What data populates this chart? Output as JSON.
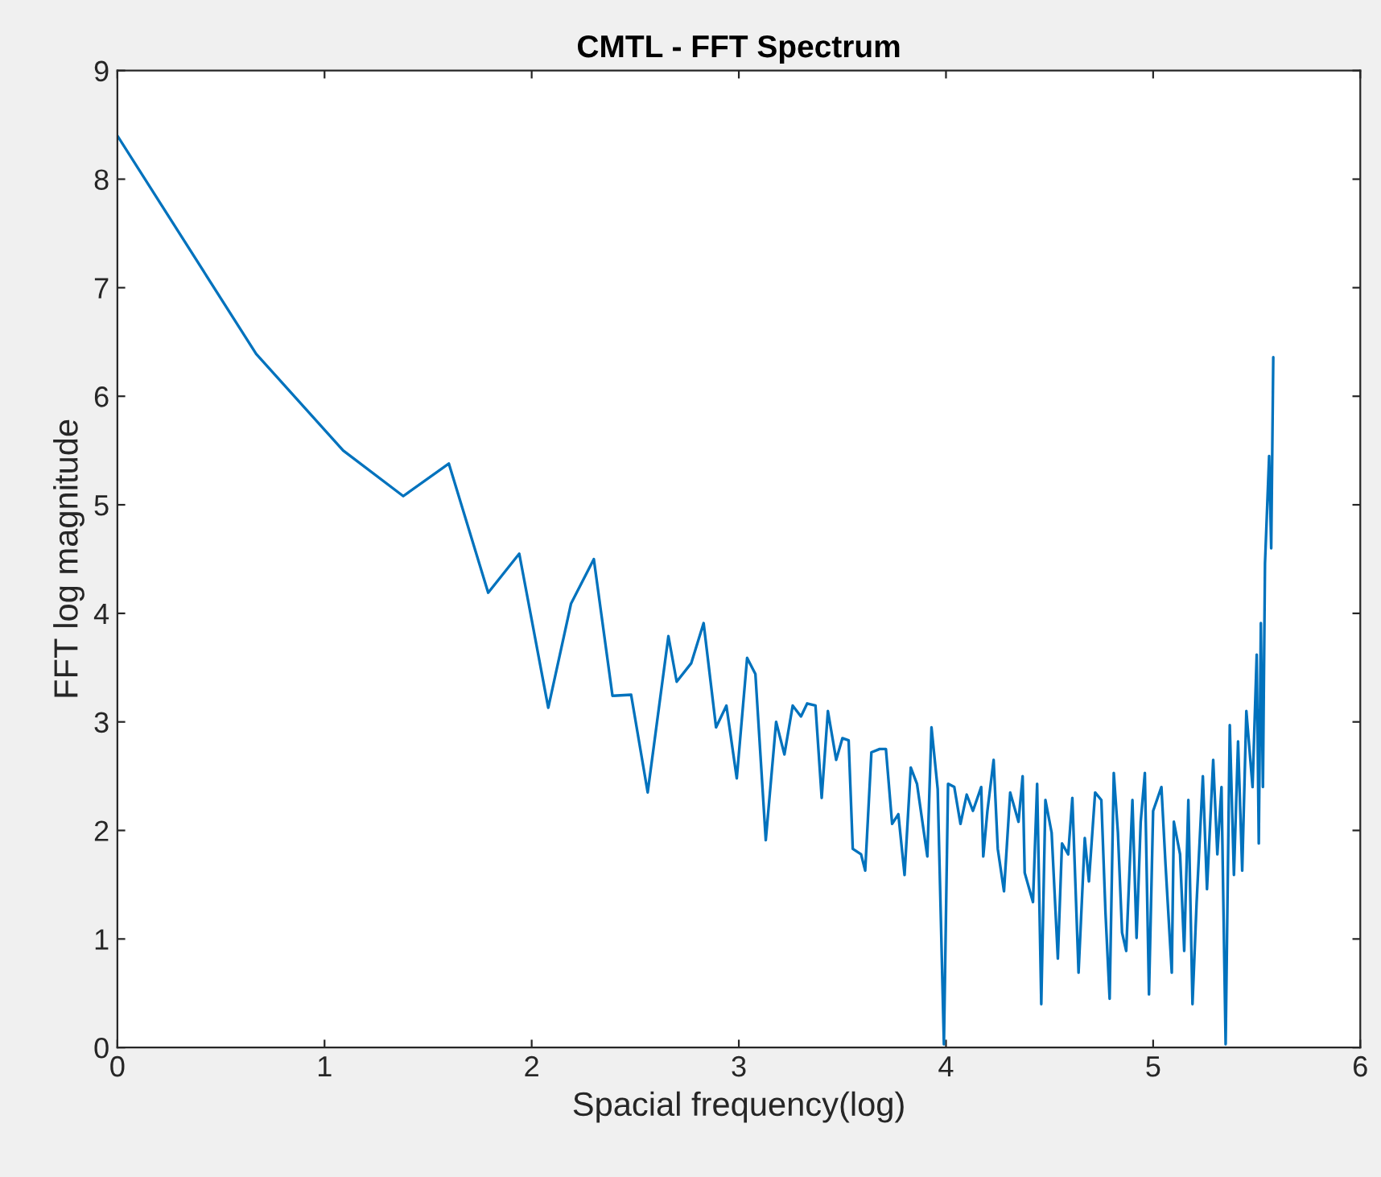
{
  "chart_data": {
    "type": "line",
    "title": "CMTL - FFT Spectrum",
    "xlabel": "Spacial frequency(log)",
    "ylabel": "FFT log magnitude",
    "xlim": [
      0,
      6
    ],
    "ylim": [
      0,
      9
    ],
    "xticks": [
      0,
      1,
      2,
      3,
      4,
      5,
      6
    ],
    "yticks": [
      0,
      1,
      2,
      3,
      4,
      5,
      6,
      7,
      8,
      9
    ],
    "grid": false,
    "marker": "none",
    "line_style": "solid",
    "series": [
      {
        "color": "#0072bd",
        "x": [
          0,
          0.67,
          1.09,
          1.38,
          1.6,
          1.79,
          1.94,
          2.08,
          2.19,
          2.3,
          2.39,
          2.48,
          2.56,
          2.66,
          2.7,
          2.77,
          2.83,
          2.89,
          2.94,
          2.99,
          3.04,
          3.08,
          3.13,
          3.18,
          3.22,
          3.26,
          3.3,
          3.33,
          3.37,
          3.4,
          3.43,
          3.47,
          3.5,
          3.53,
          3.55,
          3.59,
          3.61,
          3.64,
          3.68,
          3.71,
          3.74,
          3.77,
          3.8,
          3.83,
          3.86,
          3.91,
          3.93,
          3.96,
          3.99,
          4.01,
          4.04,
          4.07,
          4.1,
          4.13,
          4.17,
          4.18,
          4.2,
          4.23,
          4.25,
          4.28,
          4.31,
          4.35,
          4.37,
          4.38,
          4.42,
          4.44,
          4.46,
          4.48,
          4.51,
          4.54,
          4.56,
          4.59,
          4.61,
          4.64,
          4.67,
          4.69,
          4.72,
          4.75,
          4.77,
          4.79,
          4.81,
          4.83,
          4.85,
          4.87,
          4.9,
          4.92,
          4.94,
          4.96,
          4.98,
          5.0,
          5.04,
          5.06,
          5.09,
          5.1,
          5.13,
          5.15,
          5.17,
          5.19,
          5.21,
          5.24,
          5.26,
          5.29,
          5.31,
          5.33,
          5.35,
          5.37,
          5.39,
          5.41,
          5.43,
          5.45,
          5.48,
          5.5,
          5.51,
          5.52,
          5.53,
          5.54,
          5.56,
          5.57,
          5.58
        ],
        "values": [
          8.4,
          6.39,
          5.5,
          5.08,
          5.38,
          4.19,
          4.55,
          3.13,
          4.09,
          4.5,
          3.24,
          3.25,
          2.35,
          3.79,
          3.37,
          3.54,
          3.91,
          2.95,
          3.15,
          2.48,
          3.59,
          3.44,
          1.91,
          3.0,
          2.7,
          3.15,
          3.05,
          3.17,
          3.15,
          2.3,
          3.1,
          2.65,
          2.85,
          2.83,
          1.83,
          1.78,
          1.63,
          2.72,
          2.75,
          2.75,
          2.06,
          2.15,
          1.59,
          2.58,
          2.43,
          1.76,
          2.95,
          2.38,
          0.03,
          2.43,
          2.4,
          2.06,
          2.33,
          2.18,
          2.4,
          1.76,
          2.18,
          2.65,
          1.83,
          1.44,
          2.35,
          2.08,
          2.5,
          1.61,
          1.34,
          2.43,
          0.4,
          2.28,
          1.98,
          0.82,
          1.88,
          1.78,
          2.3,
          0.69,
          1.93,
          1.53,
          2.35,
          2.28,
          1.24,
          0.45,
          2.53,
          1.98,
          1.06,
          0.89,
          2.28,
          1.01,
          2.08,
          2.53,
          0.49,
          2.18,
          2.4,
          1.68,
          0.69,
          2.08,
          1.78,
          0.89,
          2.28,
          0.4,
          1.34,
          2.5,
          1.46,
          2.65,
          1.78,
          2.4,
          0.03,
          2.97,
          1.59,
          2.82,
          1.63,
          3.1,
          2.4,
          3.62,
          1.88,
          3.91,
          2.4,
          4.46,
          5.45,
          4.6,
          6.36
        ]
      }
    ]
  }
}
